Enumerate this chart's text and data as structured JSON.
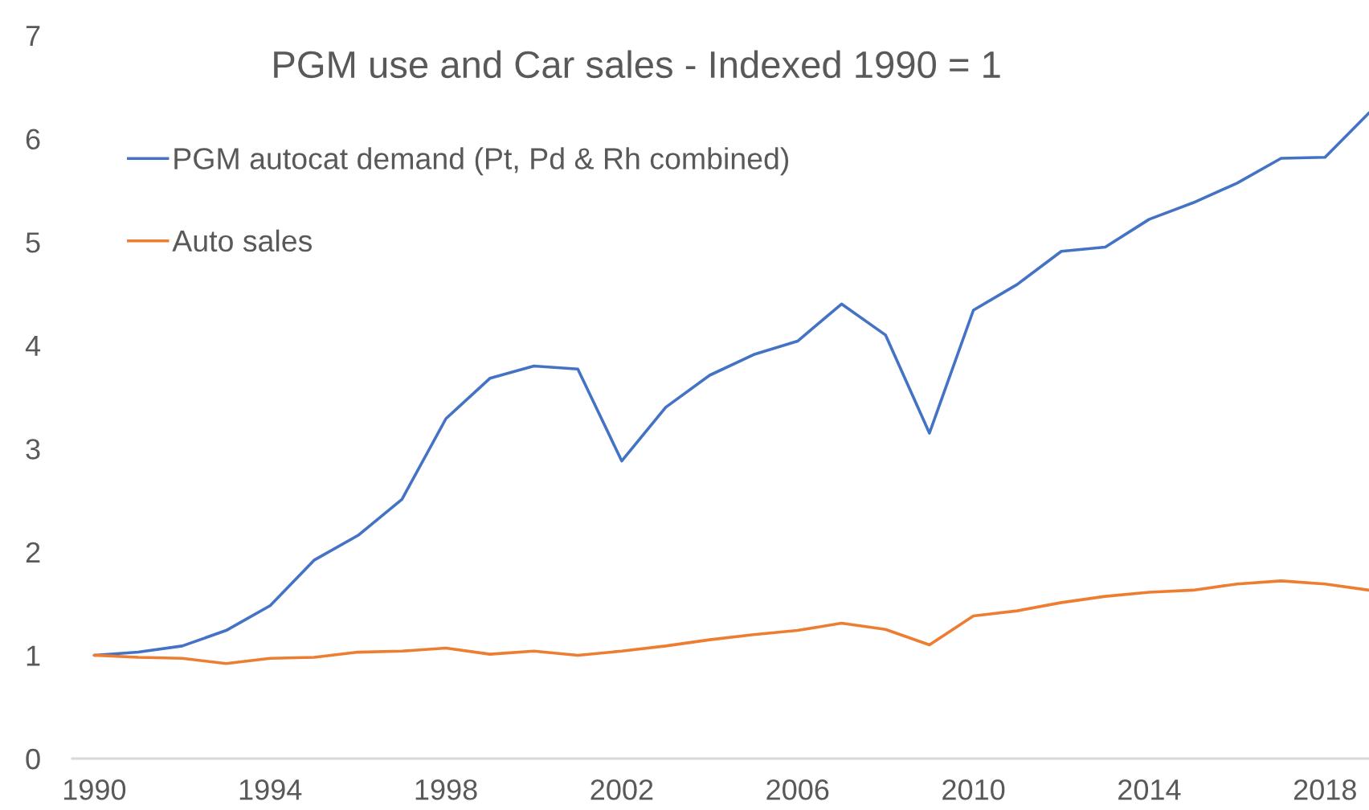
{
  "chart_data": {
    "type": "line",
    "title": "PGM use and Car sales - Indexed 1990 = 1",
    "x": [
      1990,
      1991,
      1992,
      1993,
      1994,
      1995,
      1996,
      1997,
      1998,
      1999,
      2000,
      2001,
      2002,
      2003,
      2004,
      2005,
      2006,
      2007,
      2008,
      2009,
      2010,
      2011,
      2012,
      2013,
      2014,
      2015,
      2016,
      2017,
      2018,
      2019
    ],
    "xlim": [
      1989.5,
      2019
    ],
    "xticks": [
      1990,
      1994,
      1998,
      2002,
      2006,
      2010,
      2014,
      2018
    ],
    "ylim": [
      0,
      7
    ],
    "yticks": [
      0,
      1,
      2,
      3,
      4,
      5,
      6,
      7
    ],
    "grid": false,
    "legend": "top left",
    "marker": "none",
    "line_style": "solid",
    "series": [
      {
        "name": "PGM autocat demand (Pt, Pd & Rh combined)",
        "color": "#4472c4",
        "values": [
          1.0,
          1.03,
          1.09,
          1.24,
          1.48,
          1.92,
          2.16,
          2.51,
          3.29,
          3.68,
          3.8,
          3.77,
          2.88,
          3.4,
          3.71,
          3.91,
          4.04,
          4.4,
          4.1,
          3.15,
          4.34,
          4.59,
          4.91,
          4.95,
          5.22,
          5.38,
          5.57,
          5.81,
          5.82,
          6.25
        ]
      },
      {
        "name": "Auto sales",
        "color": "#ed7d31",
        "values": [
          1.0,
          0.98,
          0.97,
          0.92,
          0.97,
          0.98,
          1.03,
          1.04,
          1.07,
          1.01,
          1.04,
          1.0,
          1.04,
          1.09,
          1.15,
          1.2,
          1.24,
          1.31,
          1.25,
          1.1,
          1.38,
          1.43,
          1.51,
          1.57,
          1.61,
          1.63,
          1.69,
          1.72,
          1.69,
          1.63
        ]
      }
    ]
  }
}
